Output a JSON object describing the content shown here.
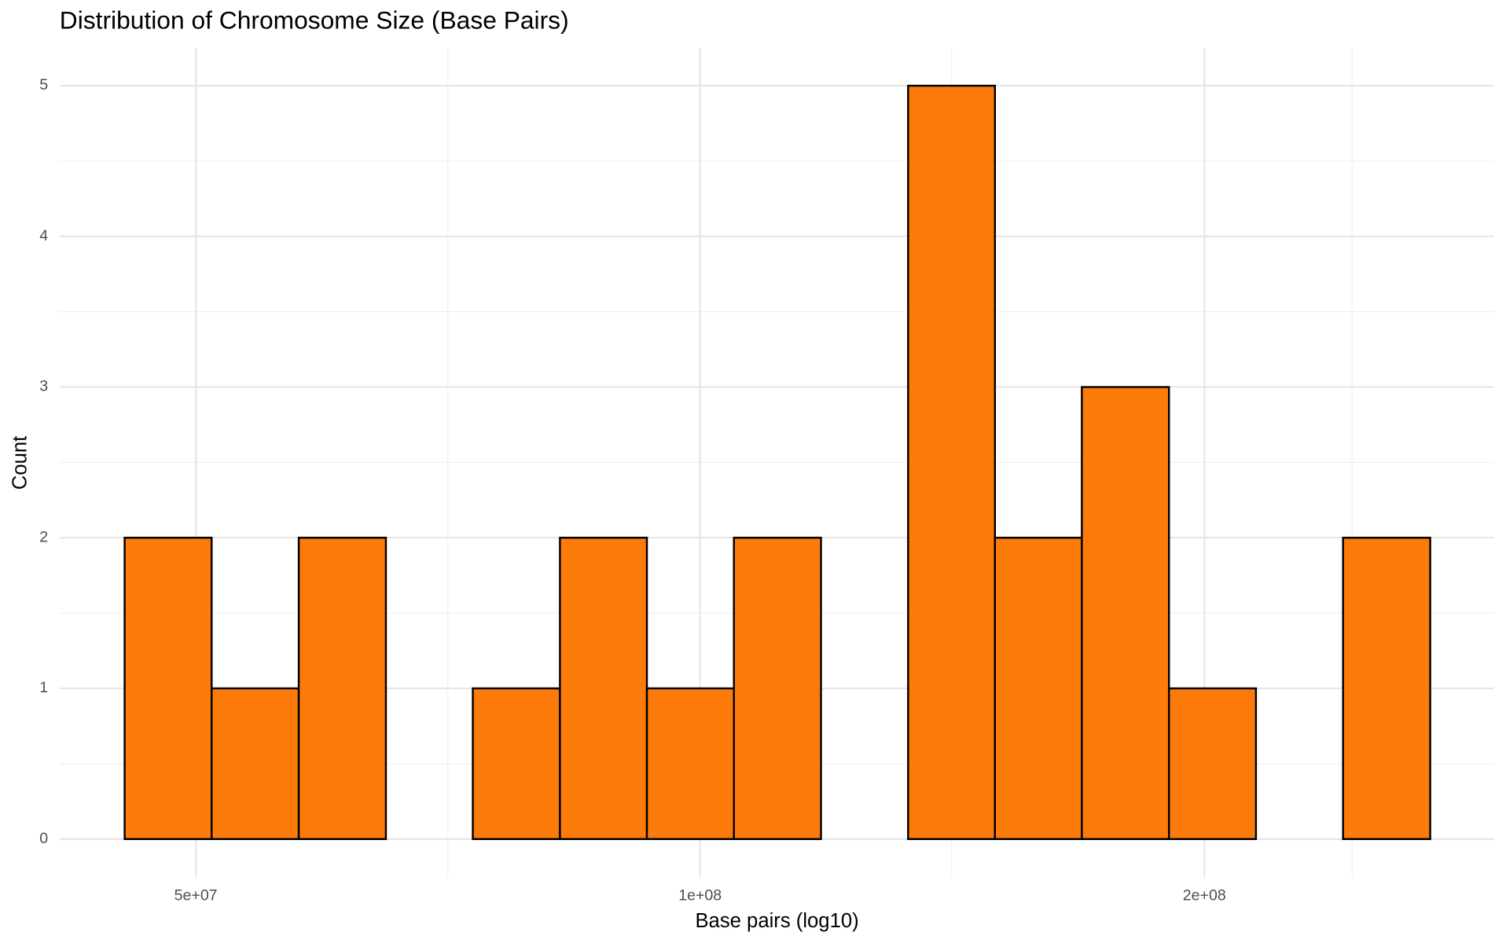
{
  "chart_data": {
    "type": "histogram",
    "title": "Distribution of Chromosome Size (Base Pairs)",
    "x_label": "Base pairs (log10)",
    "y_label": "Count",
    "x_log": true,
    "bins": [
      45340000,
      51100000,
      57600000,
      64930000,
      73170000,
      82480000,
      92950000,
      104760000,
      118080000,
      133100000,
      149970000,
      169000000,
      190500000,
      214700000,
      242000000,
      272800000
    ],
    "values": [
      2,
      1,
      2,
      0,
      1,
      2,
      1,
      2,
      0,
      5,
      2,
      3,
      1,
      0,
      2
    ],
    "color": "#fc7b0b",
    "edge_color": "#000000",
    "xlim": [
      41460000,
      297600000
    ],
    "ylim": [
      -0.25,
      5.25
    ],
    "xticks": [
      {
        "value": 50000000,
        "label": "5e+07"
      },
      {
        "value": 100000000,
        "label": "1e+08"
      },
      {
        "value": 200000000,
        "label": "2e+08"
      }
    ],
    "x_minor_ticks": [
      70700000,
      141300000,
      245000000
    ],
    "yticks": [
      0,
      1,
      2,
      3,
      4,
      5
    ],
    "y_minor_ticks": [
      0.5,
      1.5,
      2.5,
      3.5,
      4.5
    ],
    "grid": true
  }
}
